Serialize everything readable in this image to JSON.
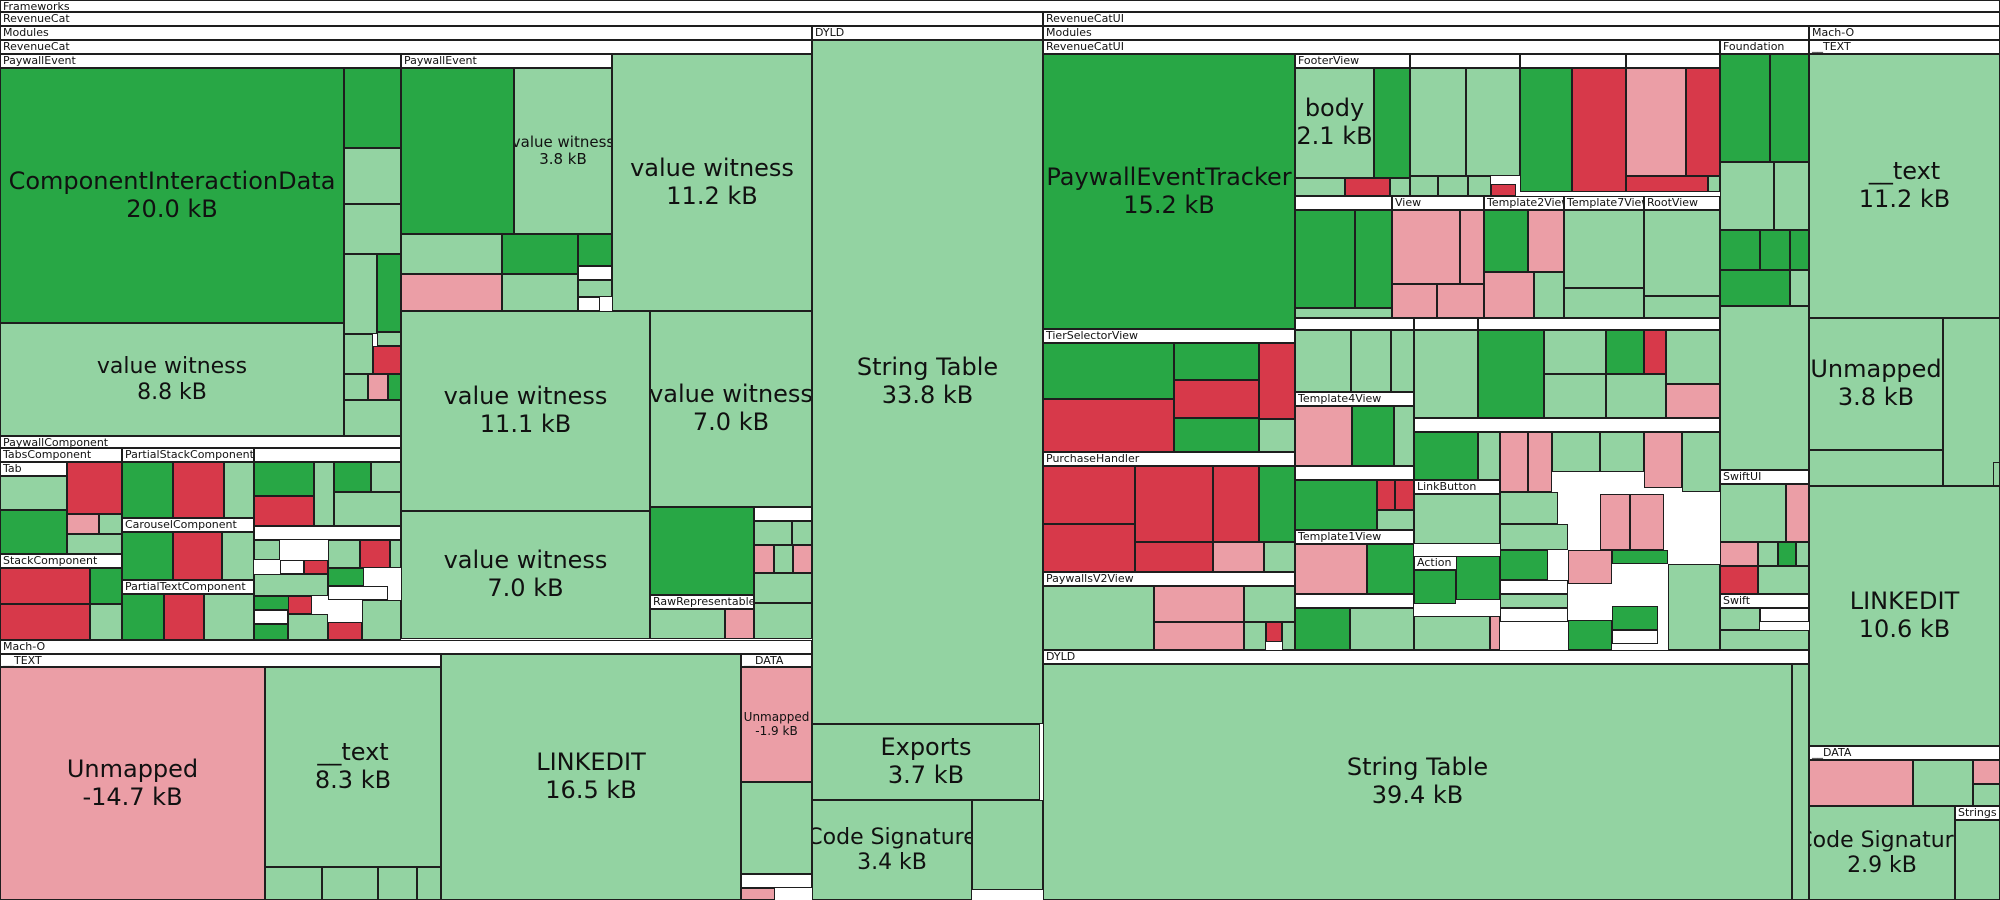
{
  "colors": {
    "increase_light": "#93d3a2",
    "increase_strong": "#28a745",
    "decrease_light": "#eb9ea6",
    "decrease_strong": "#d7394a",
    "border": "#1e1e1e"
  },
  "headers": {
    "frameworks": "Frameworks",
    "revenuecat": "RevenueCat",
    "modules": "Modules",
    "revenuecat_module": "RevenueCat",
    "paywall_event": "PaywallEvent",
    "paywall_event_2": "PaywallEvent",
    "paywall_component": "PaywallComponent",
    "tabs_component": "TabsComponent",
    "partial_stack_component": "PartialStackComponent",
    "tab": "Tab",
    "carousel_component": "CarouselComponent",
    "stack_component": "StackComponent",
    "partial_text_component": "PartialTextComponent",
    "raw_representable": "RawRepresentable",
    "mach_o": "Mach-O",
    "text_segment": "__TEXT",
    "data_segment": "__DATA",
    "dyld": "DYLD",
    "revenuecatui": "RevenueCatUI",
    "modules_ui": "Modules",
    "revenuecatui_module": "RevenueCatUI",
    "footer_view": "FooterView",
    "foundation": "Foundation",
    "view": "View",
    "template2_view": "Template2View",
    "template7_view": "Template7View",
    "root_view": "RootView",
    "tier_selector_view": "TierSelectorView",
    "template4_view": "Template4View",
    "purchase_handler": "PurchaseHandler",
    "link_button": "LinkButton",
    "template1_view": "Template1View",
    "action": "Action",
    "paywalls_v2_view": "PaywallsV2View",
    "swiftui": "SwiftUI",
    "swift": "Swift",
    "dyld_ui": "DYLD",
    "mach_o_ui": "Mach-O",
    "text_segment_ui": "__TEXT",
    "data_segment_ui": "__DATA",
    "strings": "Strings"
  },
  "blocks": {
    "component_interaction_data": {
      "name": "ComponentInteractionData",
      "size": "20.0 kB"
    },
    "value_witness_a": {
      "name": "value witness",
      "size": "8.8 kB"
    },
    "value_witness_b": {
      "name": "value witness",
      "size": "3.8 kB"
    },
    "value_witness_c": {
      "name": "value witness",
      "size": "11.2 kB"
    },
    "value_witness_d": {
      "name": "value witness",
      "size": "11.1 kB"
    },
    "value_witness_e": {
      "name": "value witness",
      "size": "7.0 kB"
    },
    "value_witness_f": {
      "name": "value witness",
      "size": "7.0 kB"
    },
    "string_table_rc": {
      "name": "String Table",
      "size": "33.8 kB"
    },
    "exports": {
      "name": "Exports",
      "size": "3.7 kB"
    },
    "code_signature_rc": {
      "name": "Code Signature",
      "size": "3.4 kB"
    },
    "unmapped_rc": {
      "name": "Unmapped",
      "size": "-14.7 kB"
    },
    "text_rc": {
      "name": "__text",
      "size": "8.3 kB"
    },
    "linkedit_rc": {
      "name": "LINKEDIT",
      "size": "16.5 kB"
    },
    "unmapped_data_rc": {
      "name": "Unmapped",
      "size": "-1.9 kB"
    },
    "paywall_event_tracker": {
      "name": "PaywallEventTracker",
      "size": "15.2 kB"
    },
    "body": {
      "name": "body",
      "size": "2.1 kB"
    },
    "string_table_ui": {
      "name": "String Table",
      "size": "39.4 kB"
    },
    "text_ui": {
      "name": "__text",
      "size": "11.2 kB"
    },
    "unmapped_ui": {
      "name": "Unmapped",
      "size": "3.8 kB"
    },
    "linkedit_ui": {
      "name": "LINKEDIT",
      "size": "10.6 kB"
    },
    "code_signature_ui": {
      "name": "Code Signature",
      "size": "2.9 kB"
    }
  }
}
